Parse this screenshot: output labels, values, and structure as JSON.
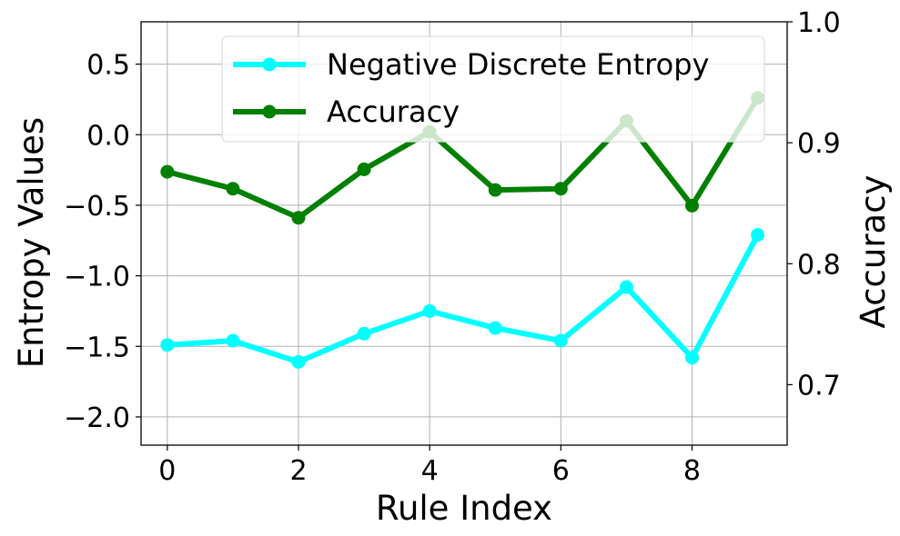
{
  "chart_data": {
    "type": "line",
    "xlabel": "Rule Index",
    "ylabel_left": "Entropy Values",
    "ylabel_right": "Accuracy",
    "x": [
      0,
      1,
      2,
      3,
      4,
      5,
      6,
      7,
      8,
      9
    ],
    "xlim": [
      -0.4,
      9.45
    ],
    "ylim_left": [
      -2.2,
      0.8
    ],
    "ylim_right": [
      0.65,
      1.0
    ],
    "x_ticks": [
      0,
      2,
      4,
      6,
      8
    ],
    "y_left_ticks": [
      -2.0,
      -1.5,
      -1.0,
      -0.5,
      0.0,
      0.5
    ],
    "y_right_ticks": [
      0.7,
      0.8,
      0.9,
      1.0
    ],
    "grid": true,
    "legend_position": "top-right",
    "series": [
      {
        "name": "Negative Discrete Entropy",
        "axis": "left",
        "color": "#00ffff",
        "values": [
          -1.49,
          -1.46,
          -1.61,
          -1.41,
          -1.25,
          -1.37,
          -1.46,
          -1.08,
          -1.58,
          -0.71
        ]
      },
      {
        "name": "Accuracy",
        "axis": "right",
        "color": "#008000",
        "values": [
          0.876,
          0.862,
          0.838,
          0.878,
          0.909,
          0.861,
          0.862,
          0.918,
          0.848,
          0.937
        ]
      }
    ]
  },
  "tick_labels": {
    "x": [
      "0",
      "2",
      "4",
      "6",
      "8"
    ],
    "y_left": [
      "−2.0",
      "−1.5",
      "−1.0",
      "−0.5",
      "0.0",
      "0.5"
    ],
    "y_right": [
      "0.7",
      "0.8",
      "0.9",
      "1.0"
    ]
  }
}
